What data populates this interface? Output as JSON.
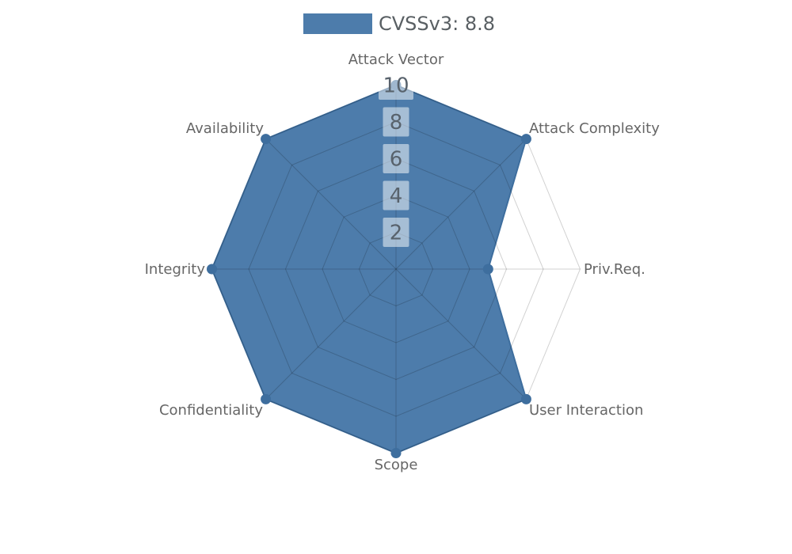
{
  "chart_data": {
    "type": "radar",
    "legend": {
      "label": "CVSSv3: 8.8",
      "position": "top"
    },
    "axes": [
      "Attack Vector",
      "Attack Complexity",
      "Priv.Req.",
      "User Interaction",
      "Scope",
      "Confidentiality",
      "Integrity",
      "Availability"
    ],
    "series": [
      {
        "name": "CVSSv3: 8.8",
        "values": [
          10,
          10,
          5,
          10,
          10,
          10,
          10,
          10
        ]
      }
    ],
    "rmax": 10,
    "tick_step": 2,
    "tick_labels": [
      "2",
      "4",
      "6",
      "8",
      "10"
    ],
    "grid": true,
    "colors": {
      "fill": "#4d7cab",
      "stroke": "#3e6e9e",
      "dot": "#3e6e9e",
      "grid_line": "#000000",
      "grid_opacity": "0.18",
      "axis_label": "#666666",
      "tick_text": "#58626c",
      "tick_box": "#ffffff",
      "tick_box_opacity": "0.5",
      "legend_text": "#595f63"
    }
  }
}
